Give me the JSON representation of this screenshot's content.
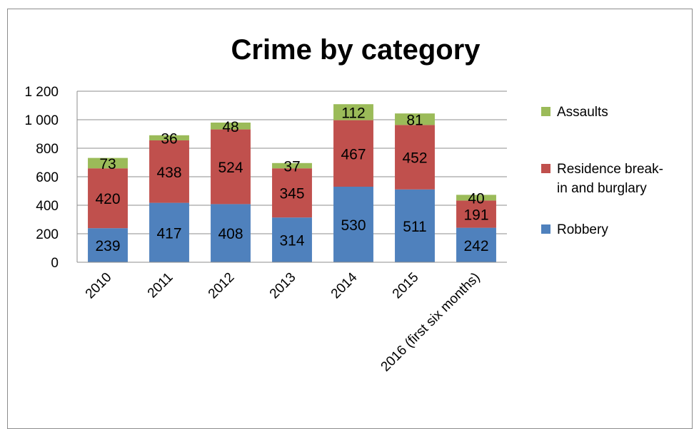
{
  "chart_data": {
    "type": "bar",
    "stacked": true,
    "title": "Crime by category",
    "xlabel": "",
    "ylabel": "",
    "categories": [
      "2010",
      "2011",
      "2012",
      "2013",
      "2014",
      "2015",
      "2016 (first six months)"
    ],
    "series": [
      {
        "name": "Robbery",
        "color": "#4f81bd",
        "values": [
          239,
          417,
          408,
          314,
          530,
          511,
          242
        ]
      },
      {
        "name": "Residence break-in and burglary",
        "color": "#c0504d",
        "values": [
          420,
          438,
          524,
          345,
          467,
          452,
          191
        ]
      },
      {
        "name": "Assaults",
        "color": "#9bbb59",
        "values": [
          73,
          36,
          48,
          37,
          112,
          81,
          40
        ]
      }
    ],
    "ylim": [
      0,
      1200
    ],
    "yticks": [
      0,
      200,
      400,
      600,
      800,
      1000,
      1200
    ],
    "ytick_labels": [
      "0",
      "200",
      "400",
      "600",
      "800",
      "1 000",
      "1 200"
    ],
    "grid": true,
    "legend_position": "right",
    "legend_entries": [
      {
        "series": "Assaults",
        "lines": [
          "Assaults"
        ]
      },
      {
        "series": "Residence break-in and burglary",
        "lines": [
          "Residence break-",
          "in and burglary"
        ]
      },
      {
        "series": "Robbery",
        "lines": [
          "Robbery"
        ]
      }
    ],
    "data_labels": true
  }
}
